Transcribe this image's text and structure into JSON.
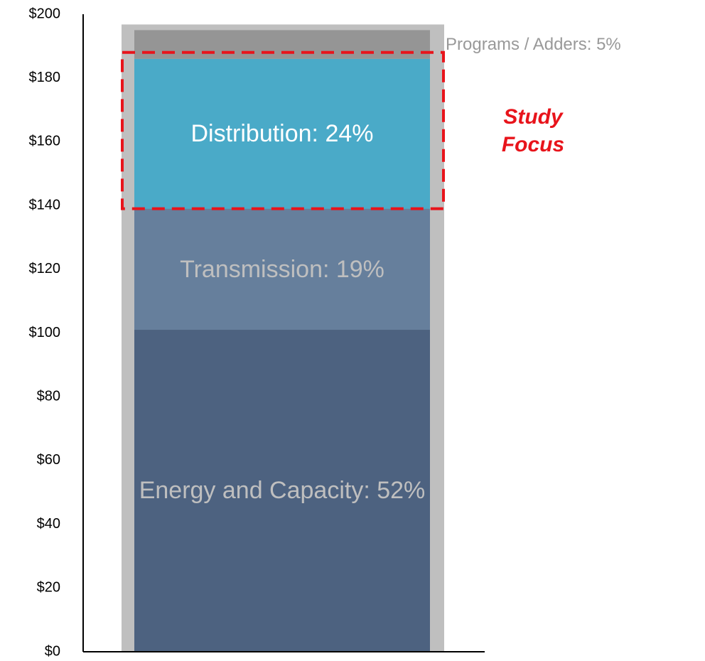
{
  "chart_data": {
    "type": "stacked_bar",
    "categories": [
      null
    ],
    "series": [
      {
        "name": "Energy and Capacity: 52%",
        "color": "#4d6280",
        "label_color": "#bfbfbf",
        "values": [
          101
        ]
      },
      {
        "name": "Transmission: 19%",
        "color": "#667f9c",
        "label_color": "#bfbfbf",
        "values": [
          38
        ]
      },
      {
        "name": "Distribution: 24%",
        "color": "#4aaac8",
        "label_color": "#ffffff",
        "values": [
          47
        ]
      },
      {
        "name": "Programs / Adders: 5%",
        "color": "#959595",
        "label_color": "#999999",
        "label_position": "right",
        "values": [
          9
        ]
      }
    ],
    "annotation": "Study Focus",
    "highlight_series": 2,
    "ylim": [
      0,
      200
    ],
    "yticks": [
      {
        "value": 0,
        "label": "$0"
      },
      {
        "value": 20,
        "label": "$20"
      },
      {
        "value": 40,
        "label": "$40"
      },
      {
        "value": 60,
        "label": "$60"
      },
      {
        "value": 80,
        "label": "$80"
      },
      {
        "value": 100,
        "label": "$100"
      },
      {
        "value": 120,
        "label": "$120"
      },
      {
        "value": 140,
        "label": "$140"
      },
      {
        "value": 160,
        "label": "$160"
      },
      {
        "value": 180,
        "label": "$180"
      },
      {
        "value": 200,
        "label": "$200"
      }
    ]
  }
}
